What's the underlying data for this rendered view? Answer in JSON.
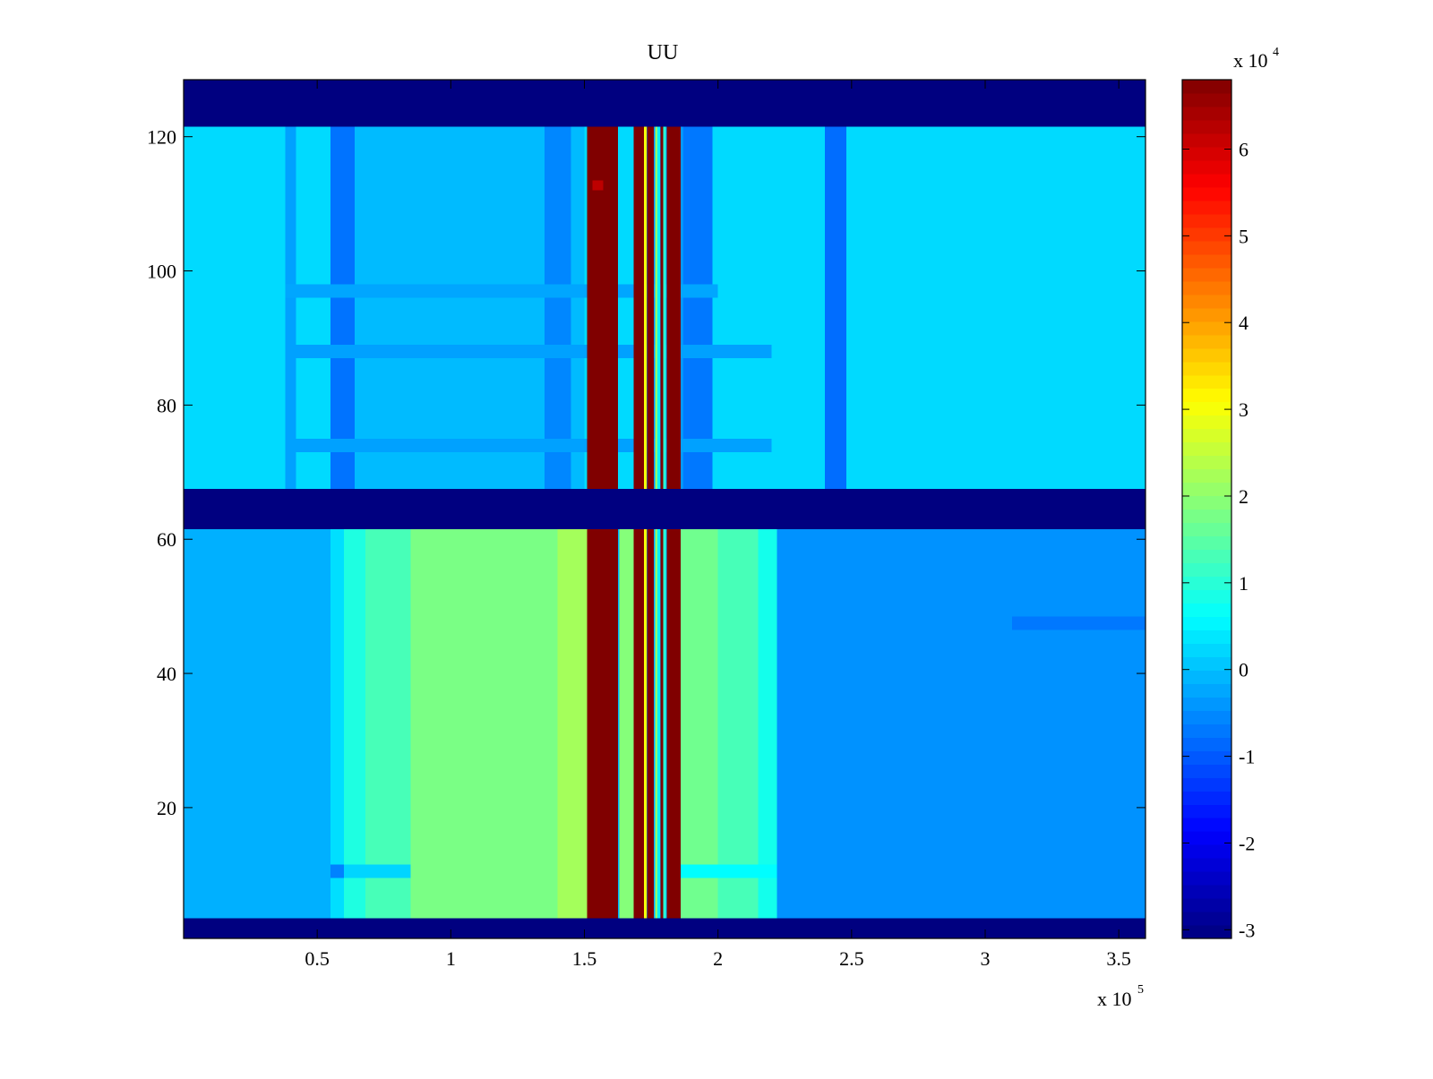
{
  "chart_data": {
    "type": "heatmap",
    "title": "UU",
    "xlabel": "",
    "ylabel": "",
    "colormap": "jet",
    "x_multiplier_label": "x 10",
    "x_multiplier_exp": "5",
    "colorbar_multiplier_label": "x 10",
    "colorbar_multiplier_exp": "4",
    "xlim": [
      0,
      3.6
    ],
    "ylim": [
      0.5,
      128.5
    ],
    "clim": [
      -3.1,
      6.8
    ],
    "x_ticks": [
      {
        "value": 0.5,
        "label": "0.5"
      },
      {
        "value": 1,
        "label": "1"
      },
      {
        "value": 1.5,
        "label": "1.5"
      },
      {
        "value": 2,
        "label": "2"
      },
      {
        "value": 2.5,
        "label": "2.5"
      },
      {
        "value": 3,
        "label": "3"
      },
      {
        "value": 3.5,
        "label": "3.5"
      }
    ],
    "y_ticks": [
      {
        "value": 20,
        "label": "20"
      },
      {
        "value": 40,
        "label": "40"
      },
      {
        "value": 60,
        "label": "60"
      },
      {
        "value": 80,
        "label": "80"
      },
      {
        "value": 100,
        "label": "100"
      },
      {
        "value": 120,
        "label": "120"
      }
    ],
    "colorbar_ticks": [
      {
        "value": -3,
        "label": "-3"
      },
      {
        "value": -2,
        "label": "-2"
      },
      {
        "value": -1,
        "label": "-1"
      },
      {
        "value": 0,
        "label": "0"
      },
      {
        "value": 1,
        "label": "1"
      },
      {
        "value": 2,
        "label": "2"
      },
      {
        "value": 3,
        "label": "3"
      },
      {
        "value": 4,
        "label": "4"
      },
      {
        "value": 5,
        "label": "5"
      },
      {
        "value": 6,
        "label": "6"
      }
    ],
    "row_bands": [
      {
        "y_range": [
          0.5,
          3.5
        ],
        "value": -3.1
      },
      {
        "y_range": [
          61.5,
          67.5
        ],
        "value": -3.1
      },
      {
        "y_range": [
          121.5,
          128.5
        ],
        "value": -3.1
      }
    ],
    "regions": [
      {
        "y_range": [
          3.5,
          61.5
        ],
        "background": -0.15,
        "column_blocks": [
          {
            "x_range": [
              0.55,
              0.6
            ],
            "value": 0.3
          },
          {
            "x_range": [
              0.6,
              0.68
            ],
            "value": 0.9
          },
          {
            "x_range": [
              0.68,
              0.85
            ],
            "value": 1.3
          },
          {
            "x_range": [
              0.85,
              1.4
            ],
            "value": 1.8
          },
          {
            "x_range": [
              1.4,
              1.52
            ],
            "value": 2.2
          },
          {
            "x_range": [
              1.63,
              1.69
            ],
            "value": 1.9
          },
          {
            "x_range": [
              1.86,
              2.0
            ],
            "value": 1.7
          },
          {
            "x_range": [
              2.0,
              2.15
            ],
            "value": 1.3
          },
          {
            "x_range": [
              2.15,
              2.22
            ],
            "value": 0.8
          },
          {
            "x_range": [
              2.22,
              3.6
            ],
            "value": -0.45
          }
        ],
        "row_stripes": [
          {
            "y_range": [
              9.5,
              11.5
            ],
            "x_range": [
              0.55,
              0.6
            ],
            "value": -0.6
          },
          {
            "y_range": [
              9.5,
              11.5
            ],
            "x_range": [
              0.6,
              0.85
            ],
            "value": 0.2
          },
          {
            "y_range": [
              9.5,
              11.5
            ],
            "x_range": [
              1.86,
              2.22
            ],
            "value": 0.6
          },
          {
            "y_range": [
              46.5,
              48.5
            ],
            "x_range": [
              3.1,
              3.6
            ],
            "value": -0.7
          }
        ]
      },
      {
        "y_range": [
          67.5,
          121.5
        ],
        "background": 0.25,
        "column_blocks": [
          {
            "x_range": [
              0.38,
              0.42
            ],
            "value": -0.3
          },
          {
            "x_range": [
              0.55,
              0.64
            ],
            "value": -0.75
          },
          {
            "x_range": [
              0.64,
              1.5
            ],
            "value": -0.05
          },
          {
            "x_range": [
              1.35,
              1.45
            ],
            "value": -0.55
          },
          {
            "x_range": [
              1.69,
              1.87
            ],
            "value": -0.4
          },
          {
            "x_range": [
              1.87,
              1.98
            ],
            "value": -0.7
          },
          {
            "x_range": [
              2.4,
              2.48
            ],
            "value": -0.8
          }
        ],
        "row_stripes": [
          {
            "y_range": [
              73,
              75
            ],
            "x_range": [
              0.38,
              2.2
            ],
            "value": -0.3
          },
          {
            "y_range": [
              87,
              89
            ],
            "x_range": [
              0.38,
              2.2
            ],
            "value": -0.3
          },
          {
            "y_range": [
              96,
              98
            ],
            "x_range": [
              0.38,
              2.0
            ],
            "value": -0.25
          }
        ]
      }
    ],
    "saturated_columns": [
      {
        "x_range": [
          1.51,
          1.625
        ],
        "value": 6.8
      },
      {
        "x_range": [
          1.685,
          1.725
        ],
        "value": 6.8
      },
      {
        "x_range": [
          1.735,
          1.76
        ],
        "value": 6.8
      },
      {
        "x_range": [
          1.808,
          1.86
        ],
        "value": 6.8
      }
    ],
    "thin_columns": [
      {
        "x": 1.728,
        "value": 3.0
      },
      {
        "x": 1.77,
        "value": 2.0
      },
      {
        "x": 1.778,
        "value": 0.5
      },
      {
        "x": 1.79,
        "value": 6.8
      },
      {
        "x": 1.8,
        "value": 1.0
      }
    ],
    "spots": [
      {
        "x_range": [
          1.53,
          1.57
        ],
        "y_range": [
          112,
          113.5
        ],
        "value": 6.2
      }
    ]
  }
}
